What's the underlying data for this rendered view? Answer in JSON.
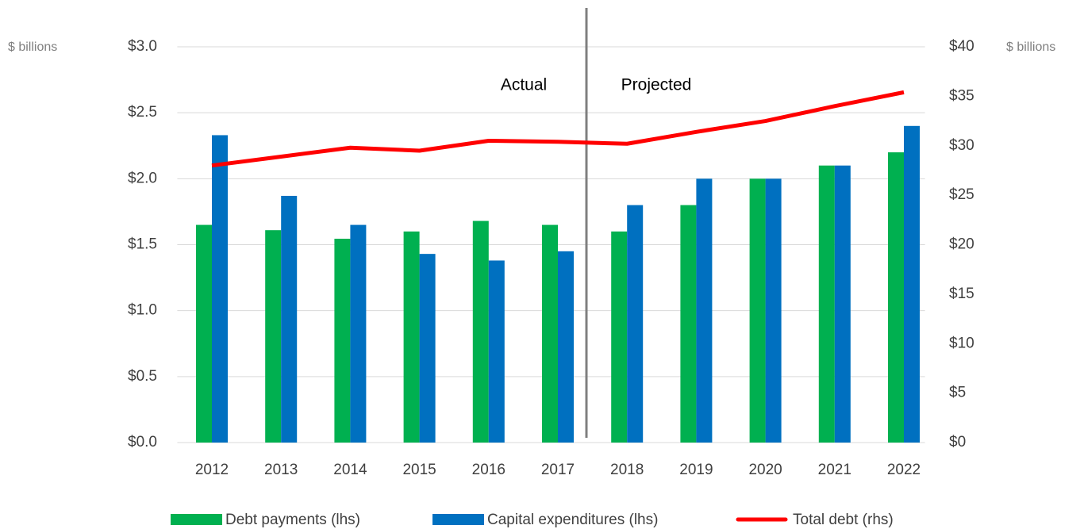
{
  "chart_data": {
    "type": "bar_line",
    "annotations": [
      "$ billions",
      "$ billions",
      "Actual",
      "Projected"
    ],
    "categories": [
      "2012",
      "2013",
      "2014",
      "2015",
      "2016",
      "2017",
      "2018",
      "2019",
      "2020",
      "2021",
      "2022"
    ],
    "series": [
      {
        "name": "Debt payments (lhs)",
        "color": "#00b050",
        "type": "bar",
        "values": [
          1.65,
          1.61,
          1.545,
          1.6,
          1.68,
          1.65,
          1.6,
          1.8,
          2.0,
          2.1,
          2.2
        ]
      },
      {
        "name": "Capital expenditures (lhs)",
        "color": "#0070c0",
        "type": "bar",
        "values": [
          2.33,
          1.87,
          1.65,
          1.43,
          1.38,
          1.45,
          1.8,
          2.0,
          2.0,
          2.1,
          2.4
        ]
      },
      {
        "name": "Total debt (rhs)",
        "color": "#ff0000",
        "type": "line",
        "axis": "y2",
        "values": [
          28,
          28.9,
          29.8,
          29.5,
          30.5,
          30.4,
          30.2,
          31.4,
          32.5,
          34.0,
          35.4
        ]
      }
    ],
    "ylim": [
      0,
      3
    ],
    "yticks": [
      {
        "value": 0,
        "label": "$0.0"
      },
      {
        "value": 0.5,
        "label": "$0.5"
      },
      {
        "value": 1,
        "label": "$1.0"
      },
      {
        "value": 1.5,
        "label": "$1.5"
      },
      {
        "value": 2,
        "label": "$2.0"
      },
      {
        "value": 2.5,
        "label": "$2.5"
      },
      {
        "value": 3,
        "label": "$3.0"
      }
    ],
    "y2lim": [
      0,
      40
    ],
    "y2ticks": [
      {
        "value": 0,
        "label": "$0"
      },
      {
        "value": 5,
        "label": "$5"
      },
      {
        "value": 10,
        "label": "$10"
      },
      {
        "value": 15,
        "label": "$15"
      },
      {
        "value": 20,
        "label": "$20"
      },
      {
        "value": 25,
        "label": "$25"
      },
      {
        "value": 30,
        "label": "$30"
      },
      {
        "value": 35,
        "label": "$35"
      },
      {
        "value": 40,
        "label": "$40"
      }
    ],
    "grid": true,
    "legend": "bottom"
  }
}
